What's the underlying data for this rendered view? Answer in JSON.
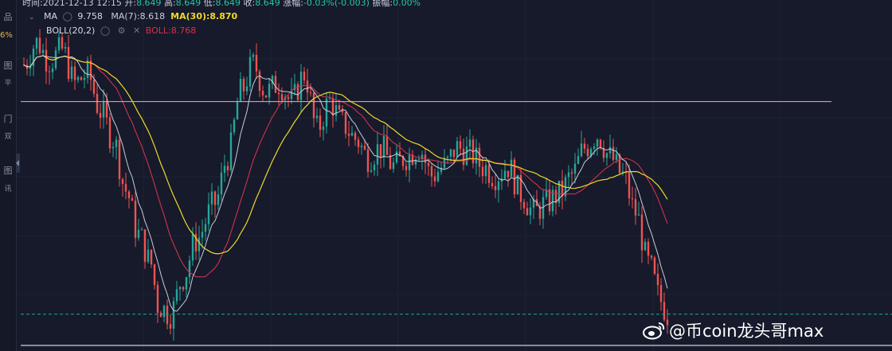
{
  "header": {
    "time_label": "时间:",
    "time": "2021-12-13 12:15",
    "open_label": "开:",
    "open": "8.649",
    "high_label": "高:",
    "high": "8.649",
    "low_label": "低:",
    "low": "8.649",
    "close_label": "收:",
    "close": "8.649",
    "change_label": "涨幅:",
    "change": "-0.03%(-0.003)",
    "amp_label": "振幅:",
    "amp": "0.00%"
  },
  "left_rail": {
    "pct": "6%",
    "glyphs": [
      "品",
      "图",
      "平",
      "门",
      "双",
      "图",
      "讯"
    ]
  },
  "indicators": {
    "ma_label": "MA",
    "ma_value": "9.758",
    "ma7": "MA(7):8.618",
    "ma30": "MA(30):8.870",
    "boll_label": "BOLL(20,2)",
    "boll_value": "BOLL:8.768"
  },
  "colors": {
    "background": "#161a2b",
    "bull": "#26a69a",
    "bear": "#ef5350",
    "ma7": "#c7ccd9",
    "ma30": "#f0d92a",
    "boll": "#d2314c",
    "pink_line": "#f4a8c8",
    "dashed_line": "#26a69a",
    "white_line": "#ffffff"
  },
  "chart_data": {
    "type": "candlestick",
    "y_range": [
      8.45,
      10.35
    ],
    "horizontal_lines": [
      {
        "name": "pink-level",
        "value": 9.8,
        "style": "solid"
      },
      {
        "name": "current-price-level",
        "value": 8.649,
        "style": "dashed"
      },
      {
        "name": "white-level",
        "value": 8.48,
        "style": "solid"
      }
    ],
    "anchors": [
      [
        0,
        10.0
      ],
      [
        2,
        10.12
      ],
      [
        4,
        10.02
      ],
      [
        6,
        10.08
      ],
      [
        8,
        9.9
      ],
      [
        10,
        9.95
      ],
      [
        12,
        9.75
      ],
      [
        14,
        9.6
      ],
      [
        16,
        9.32
      ],
      [
        18,
        9.08
      ],
      [
        20,
        8.92
      ],
      [
        21,
        8.7
      ],
      [
        23,
        8.65
      ],
      [
        25,
        8.85
      ],
      [
        27,
        9.05
      ],
      [
        30,
        9.25
      ],
      [
        32,
        9.5
      ],
      [
        34,
        9.85
      ],
      [
        36,
        10.0
      ],
      [
        38,
        9.85
      ],
      [
        40,
        9.9
      ],
      [
        42,
        9.8
      ],
      [
        44,
        9.95
      ],
      [
        46,
        9.65
      ],
      [
        48,
        9.8
      ],
      [
        50,
        9.68
      ],
      [
        52,
        9.6
      ],
      [
        54,
        9.5
      ],
      [
        56,
        9.55
      ],
      [
        58,
        9.45
      ],
      [
        60,
        9.5
      ],
      [
        62,
        9.55
      ],
      [
        64,
        9.4
      ],
      [
        66,
        9.45
      ],
      [
        68,
        9.55
      ],
      [
        70,
        9.52
      ],
      [
        72,
        9.45
      ],
      [
        74,
        9.4
      ],
      [
        76,
        9.45
      ],
      [
        78,
        9.3
      ],
      [
        80,
        9.2
      ],
      [
        82,
        9.25
      ],
      [
        84,
        9.3
      ],
      [
        86,
        9.4
      ],
      [
        88,
        9.55
      ],
      [
        90,
        9.62
      ],
      [
        92,
        9.5
      ],
      [
        94,
        9.4
      ],
      [
        96,
        9.2
      ],
      [
        98,
        8.92
      ],
      [
        100,
        8.72
      ],
      [
        101,
        8.649
      ]
    ],
    "watermark": "@币coin龙头哥max"
  }
}
